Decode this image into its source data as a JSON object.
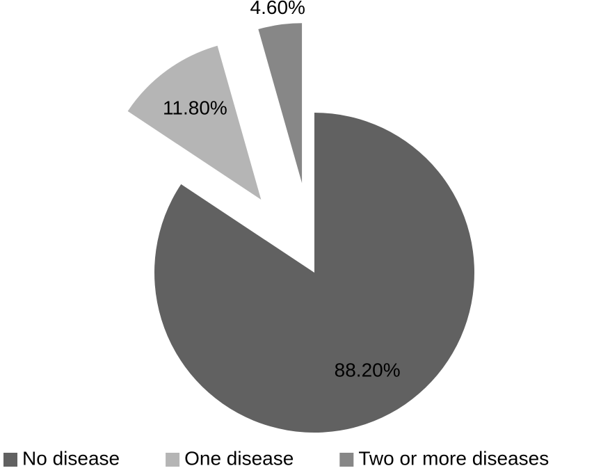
{
  "chart_data": {
    "type": "pie",
    "categories": [
      "No disease",
      "One disease",
      "Two or more diseases"
    ],
    "values": [
      88.2,
      11.8,
      4.6
    ],
    "value_labels": [
      "88.20%",
      "11.80%",
      "4.60%"
    ],
    "colors": [
      "#616161",
      "#b5b5b5",
      "#878787"
    ],
    "legend": "bottom"
  }
}
